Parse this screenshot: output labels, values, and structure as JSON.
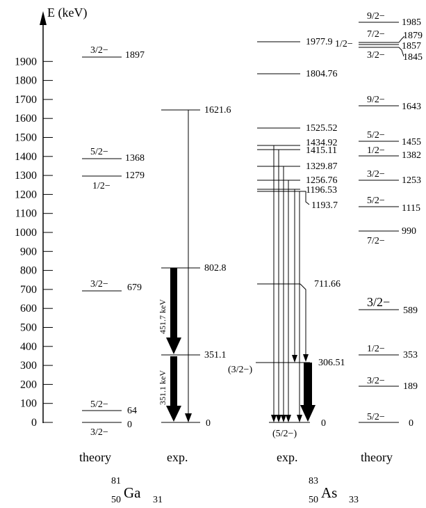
{
  "axis": {
    "label": "E (keV)",
    "ticks": [
      0,
      100,
      200,
      300,
      400,
      500,
      600,
      700,
      800,
      900,
      1000,
      1100,
      1200,
      1300,
      1400,
      1500,
      1600,
      1700,
      1800,
      1900
    ]
  },
  "columns": {
    "ga_theory": "theory",
    "ga_exp": "exp.",
    "as_exp": "exp.",
    "as_theory": "theory"
  },
  "nuclei": {
    "ga": {
      "mass": "81",
      "z": "50",
      "symbol": "Ga",
      "n": "31"
    },
    "as": {
      "mass": "83",
      "z": "50",
      "symbol": "As",
      "n": "33"
    }
  },
  "ga_theory_levels": [
    {
      "energy": "0",
      "spin": "3/2−"
    },
    {
      "energy": "64",
      "spin": "5/2−"
    },
    {
      "energy": "679",
      "spin": "3/2−"
    },
    {
      "energy": "1279",
      "spin": "1/2−"
    },
    {
      "energy": "1368",
      "spin": "5/2−"
    },
    {
      "energy": "1897",
      "spin": "3/2−"
    }
  ],
  "ga_exp_levels": [
    {
      "energy": "0"
    },
    {
      "energy": "351.1"
    },
    {
      "energy": "802.8"
    },
    {
      "energy": "1621.6"
    }
  ],
  "ga_transitions": [
    {
      "label": "451.7 keV"
    },
    {
      "label": "351.1 keV"
    }
  ],
  "as_exp_levels": [
    {
      "energy": "0",
      "spin": "(5/2−)"
    },
    {
      "energy": "306.51",
      "spin": "(3/2−)"
    },
    {
      "energy": "711.66"
    },
    {
      "energy": "1193.7"
    },
    {
      "energy": "1196.53"
    },
    {
      "energy": "1256.76"
    },
    {
      "energy": "1329.87"
    },
    {
      "energy": "1415.11"
    },
    {
      "energy": "1434.92"
    },
    {
      "energy": "1525.52"
    },
    {
      "energy": "1804.76"
    },
    {
      "energy": "1977.9"
    }
  ],
  "as_theory_levels": [
    {
      "energy": "0",
      "spin": "5/2−"
    },
    {
      "energy": "189",
      "spin": "3/2−"
    },
    {
      "energy": "353",
      "spin": "1/2−"
    },
    {
      "energy": "589",
      "spin": "3/2−"
    },
    {
      "energy": "990",
      "spin": "7/2−"
    },
    {
      "energy": "1115",
      "spin": "5/2−"
    },
    {
      "energy": "1253",
      "spin": "3/2−"
    },
    {
      "energy": "1382",
      "spin": "1/2−"
    },
    {
      "energy": "1455",
      "spin": "5/2−"
    },
    {
      "energy": "1643",
      "spin": "9/2−"
    },
    {
      "energy": "1845",
      "spin": "3/2−"
    },
    {
      "energy": "1857",
      "spin": "1/2−"
    },
    {
      "energy": "1879",
      "spin": "7/2−"
    },
    {
      "energy": "1985",
      "spin": "9/2−"
    }
  ]
}
